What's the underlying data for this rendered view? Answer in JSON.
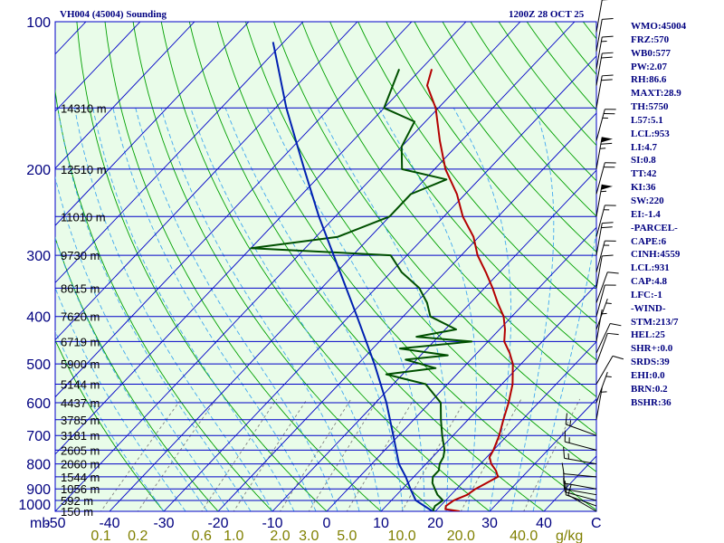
{
  "header": {
    "station": "VH004 (45004) Sounding",
    "time": "1200Z 28 OCT 25"
  },
  "colors": {
    "background": "#ffffff",
    "plot_bg": "#e9fce9",
    "isobar": "#0000c8",
    "dry_adiabat": "#00a000",
    "moist_adiabat": "#40a8f0",
    "mixing_ratio": "#808080",
    "temperature": "#b40000",
    "dewpoint": "#005000",
    "parcel": "#0020b0",
    "tick_label": "#000080",
    "mixing_label": "#808000"
  },
  "indices": [
    "WMO:45004",
    "FRZ:570",
    "WB0:577",
    "PW:2.07",
    "RH:86.6",
    "MAXT:28.9",
    "TH:5750",
    "L57:5.1",
    "LCL:953",
    "LI:4.7",
    "SI:0.8",
    "TT:42",
    "KI:36",
    "SW:220",
    "EI:-1.4",
    "-PARCEL-",
    "CAPE:6",
    "CINH:4559",
    "LCL:931",
    "CAP:4.8",
    "LFC:-1",
    "-WIND-",
    "STM:213/7",
    "HEL:25",
    "SHR+:0.0",
    "SRDS:39",
    "EHI:0.0",
    "BRN:0.2",
    "BSHR:36"
  ],
  "chart_data": {
    "type": "line",
    "diagram": "skew-T log-P",
    "x_unit": "C",
    "pressure_unit": "mb",
    "xlim": [
      -50,
      50
    ],
    "plim": [
      1000,
      100
    ],
    "pressure_ticks": [
      100,
      200,
      300,
      400,
      500,
      600,
      700,
      800,
      900,
      1000
    ],
    "temperature_ticks": [
      -50,
      -40,
      -30,
      -20,
      -10,
      0,
      10,
      20,
      30,
      40
    ],
    "corner_labels": {
      "pressure": "mb",
      "temperature": "C",
      "mixing": "g/kg"
    },
    "mixing_ratio_labels": [
      {
        "w": 0.1,
        "label": "0.1"
      },
      {
        "w": 0.2,
        "label": "0.2"
      },
      {
        "w": 0.6,
        "label": "0.6"
      },
      {
        "w": 1.0,
        "label": "1.0"
      },
      {
        "w": 2.0,
        "label": "2.0"
      },
      {
        "w": 3.0,
        "label": "3.0"
      },
      {
        "w": 5.0,
        "label": "5.0"
      },
      {
        "w": 10.0,
        "label": "10.0"
      },
      {
        "w": 20.0,
        "label": "20.0"
      },
      {
        "w": 40.0,
        "label": "40.0"
      }
    ],
    "height_levels": [
      {
        "p": 150,
        "label": "14310 m"
      },
      {
        "p": 200,
        "label": "12510 m"
      },
      {
        "p": 250,
        "label": "11010 m"
      },
      {
        "p": 300,
        "label": "9730 m"
      },
      {
        "p": 350,
        "label": "8615 m"
      },
      {
        "p": 400,
        "label": "7620 m"
      },
      {
        "p": 450,
        "label": "6719 m"
      },
      {
        "p": 500,
        "label": "5900 m"
      },
      {
        "p": 550,
        "label": "5144 m"
      },
      {
        "p": 600,
        "label": "4437 m"
      },
      {
        "p": 650,
        "label": "3785 m"
      },
      {
        "p": 700,
        "label": "3181 m"
      },
      {
        "p": 750,
        "label": "2605 m"
      },
      {
        "p": 800,
        "label": "2060 m"
      },
      {
        "p": 850,
        "label": "1544 m"
      },
      {
        "p": 900,
        "label": "1056 m"
      },
      {
        "p": 950,
        "label": "592 m"
      },
      {
        "p": 1000,
        "label": "150 m"
      }
    ],
    "series": [
      {
        "name": "Temperature",
        "points": [
          [
            1000,
            24.5
          ],
          [
            990,
            21.5
          ],
          [
            975,
            21.0
          ],
          [
            950,
            21.5
          ],
          [
            925,
            23.0
          ],
          [
            900,
            23.5
          ],
          [
            875,
            24.5
          ],
          [
            850,
            25.5
          ],
          [
            825,
            24.0
          ],
          [
            800,
            22.0
          ],
          [
            775,
            20.5
          ],
          [
            750,
            20.0
          ],
          [
            700,
            18.5
          ],
          [
            650,
            16.5
          ],
          [
            600,
            14.5
          ],
          [
            550,
            12.0
          ],
          [
            500,
            8.5
          ],
          [
            475,
            6.0
          ],
          [
            450,
            3.0
          ],
          [
            425,
            1.0
          ],
          [
            400,
            -1.5
          ],
          [
            375,
            -5.0
          ],
          [
            350,
            -8.5
          ],
          [
            325,
            -12.5
          ],
          [
            300,
            -17.0
          ],
          [
            275,
            -21.0
          ],
          [
            250,
            -26.5
          ],
          [
            225,
            -31.5
          ],
          [
            200,
            -38.0
          ],
          [
            175,
            -44.0
          ],
          [
            150,
            -50.5
          ],
          [
            135,
            -56.0
          ],
          [
            125,
            -58.0
          ]
        ]
      },
      {
        "name": "Dew point",
        "points": [
          [
            1000,
            19.5
          ],
          [
            975,
            19.0
          ],
          [
            950,
            19.5
          ],
          [
            925,
            17.5
          ],
          [
            900,
            16.0
          ],
          [
            875,
            14.5
          ],
          [
            850,
            13.5
          ],
          [
            825,
            13.5
          ],
          [
            800,
            12.5
          ],
          [
            775,
            12.0
          ],
          [
            750,
            11.0
          ],
          [
            700,
            8.0
          ],
          [
            650,
            5.0
          ],
          [
            600,
            2.0
          ],
          [
            550,
            -4.0
          ],
          [
            525,
            -13.0
          ],
          [
            510,
            -5.0
          ],
          [
            490,
            -12.0
          ],
          [
            480,
            -5.0
          ],
          [
            465,
            -15.0
          ],
          [
            450,
            -3.0
          ],
          [
            440,
            -14.0
          ],
          [
            425,
            -8.0
          ],
          [
            400,
            -15.0
          ],
          [
            375,
            -18.0
          ],
          [
            350,
            -22.0
          ],
          [
            325,
            -28.0
          ],
          [
            300,
            -33.0
          ],
          [
            290,
            -60.0
          ],
          [
            275,
            -46.0
          ],
          [
            250,
            -40.0
          ],
          [
            225,
            -40.0
          ],
          [
            210,
            -36.0
          ],
          [
            200,
            -46.0
          ],
          [
            180,
            -50.0
          ],
          [
            160,
            -52.0
          ],
          [
            150,
            -60.0
          ],
          [
            125,
            -64.0
          ]
        ]
      },
      {
        "name": "Parcel",
        "points": [
          [
            1000,
            19.5
          ],
          [
            950,
            14.5
          ],
          [
            900,
            11.5
          ],
          [
            850,
            8.5
          ],
          [
            800,
            5.0
          ],
          [
            700,
            -1.0
          ],
          [
            600,
            -8.0
          ],
          [
            500,
            -17.0
          ],
          [
            400,
            -28.5
          ],
          [
            300,
            -43.5
          ],
          [
            250,
            -53.0
          ],
          [
            200,
            -64.0
          ],
          [
            150,
            -78.0
          ],
          [
            110,
            -92.0
          ]
        ]
      }
    ],
    "wind_barbs": [
      {
        "p": 1000,
        "dir": 300,
        "spd": 8
      },
      {
        "p": 975,
        "dir": 290,
        "spd": 10
      },
      {
        "p": 950,
        "dir": 285,
        "spd": 12
      },
      {
        "p": 925,
        "dir": 280,
        "spd": 12
      },
      {
        "p": 900,
        "dir": 280,
        "spd": 10
      },
      {
        "p": 850,
        "dir": 275,
        "spd": 10
      },
      {
        "p": 800,
        "dir": 280,
        "spd": 15
      },
      {
        "p": 750,
        "dir": 285,
        "spd": 15
      },
      {
        "p": 700,
        "dir": 290,
        "spd": 15
      },
      {
        "p": 650,
        "dir": 10,
        "spd": 5
      },
      {
        "p": 600,
        "dir": 20,
        "spd": 5
      },
      {
        "p": 550,
        "dir": 30,
        "spd": 10
      },
      {
        "p": 500,
        "dir": 20,
        "spd": 10
      },
      {
        "p": 475,
        "dir": 25,
        "spd": 10
      },
      {
        "p": 450,
        "dir": 10,
        "spd": 5
      },
      {
        "p": 425,
        "dir": 20,
        "spd": 5
      },
      {
        "p": 400,
        "dir": 15,
        "spd": 10
      },
      {
        "p": 375,
        "dir": 20,
        "spd": 10
      },
      {
        "p": 350,
        "dir": 10,
        "spd": 10
      },
      {
        "p": 325,
        "dir": 15,
        "spd": 15
      },
      {
        "p": 300,
        "dir": 10,
        "spd": 20
      },
      {
        "p": 275,
        "dir": 15,
        "spd": 15
      },
      {
        "p": 250,
        "dir": 10,
        "spd": 55
      },
      {
        "p": 225,
        "dir": 15,
        "spd": 20
      },
      {
        "p": 200,
        "dir": 10,
        "spd": 65
      },
      {
        "p": 175,
        "dir": 15,
        "spd": 25
      },
      {
        "p": 150,
        "dir": 10,
        "spd": 20
      },
      {
        "p": 135,
        "dir": 10,
        "spd": 20
      },
      {
        "p": 125,
        "dir": 10,
        "spd": 15
      },
      {
        "p": 115,
        "dir": 10,
        "spd": 10
      },
      {
        "p": 105,
        "dir": 10,
        "spd": 10
      }
    ]
  }
}
